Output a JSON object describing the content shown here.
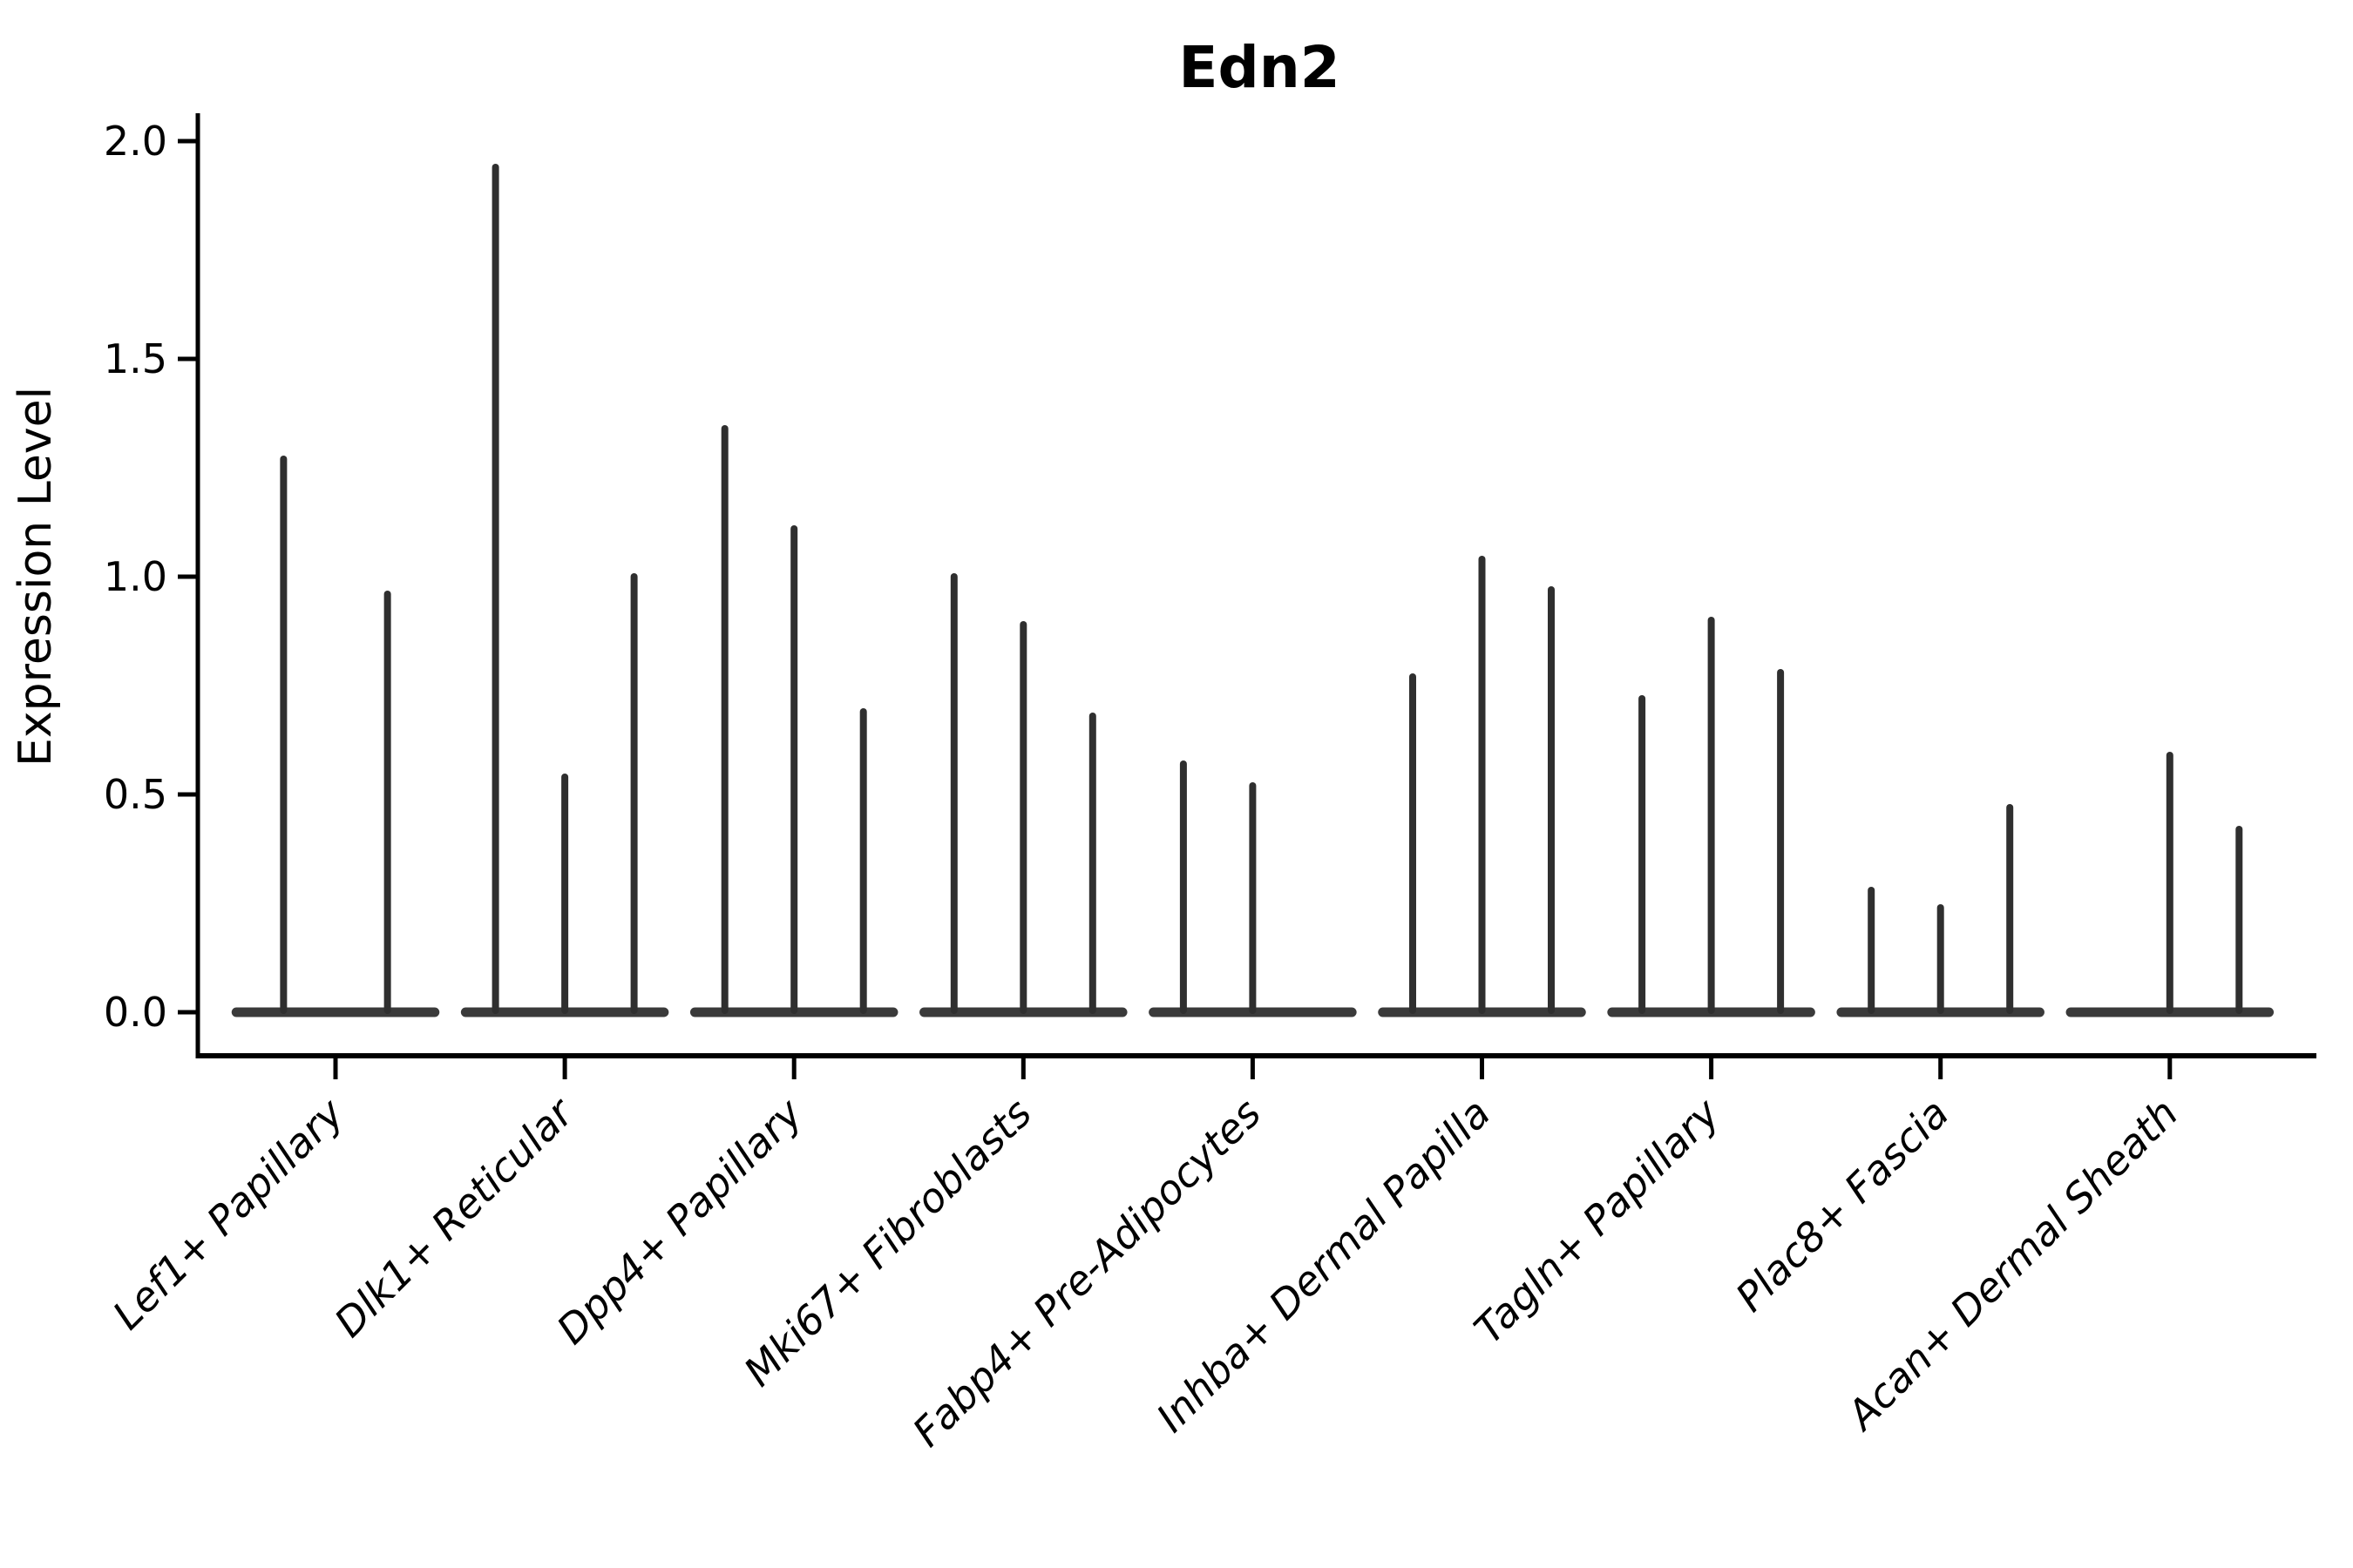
{
  "chart_data": {
    "type": "violin",
    "title": "Edn2",
    "xlabel": "",
    "ylabel": "Expression Level",
    "ylim": [
      0.0,
      2.0
    ],
    "yticks": [
      "0.0",
      "0.5",
      "1.0",
      "1.5",
      "2.0"
    ],
    "ytick_values": [
      0.0,
      0.5,
      1.0,
      1.5,
      2.0
    ],
    "grid": "off",
    "legend": "none",
    "violin_style": "needle-thin violins on flat zero baseline, dark gray",
    "categories": [
      "Lef1+ Papillary",
      "Dlk1+ Reticular",
      "Dpp4+ Papillary",
      "Mki67+ Fibroblasts",
      "Fabp4+ Pre-Adipocytes",
      "Inhba+ Dermal Papilla",
      "Tagln+ Papillary",
      "Plac8+ Fascia",
      "Acan+ Dermal Sheath"
    ],
    "groups": [
      {
        "label": "Lef1+ Papillary",
        "violin_max_values": [
          1.27,
          0.96
        ]
      },
      {
        "label": "Dlk1+ Reticular",
        "violin_max_values": [
          1.94,
          0.54,
          1.0
        ]
      },
      {
        "label": "Dpp4+ Papillary",
        "violin_max_values": [
          1.34,
          1.11,
          0.69
        ]
      },
      {
        "label": "Mki67+ Fibroblasts",
        "violin_max_values": [
          1.0,
          0.89,
          0.68
        ]
      },
      {
        "label": "Fabp4+ Pre-Adipocytes",
        "violin_max_values": [
          0.57,
          0.52,
          0.0
        ]
      },
      {
        "label": "Inhba+ Dermal Papilla",
        "violin_max_values": [
          0.77,
          1.04,
          0.97
        ]
      },
      {
        "label": "Tagln+ Papillary",
        "violin_max_values": [
          0.72,
          0.9,
          0.78
        ]
      },
      {
        "label": "Plac8+ Fascia",
        "violin_max_values": [
          0.28,
          0.24,
          0.47
        ]
      },
      {
        "label": "Acan+ Dermal Sheath",
        "violin_max_values": [
          0.0,
          0.59,
          0.42
        ]
      }
    ],
    "colors": {
      "violin_fill": "#3a3a3a",
      "spike_stroke": "#2f2f2f",
      "axis": "#000000",
      "text": "#000000",
      "background": "#ffffff"
    }
  }
}
